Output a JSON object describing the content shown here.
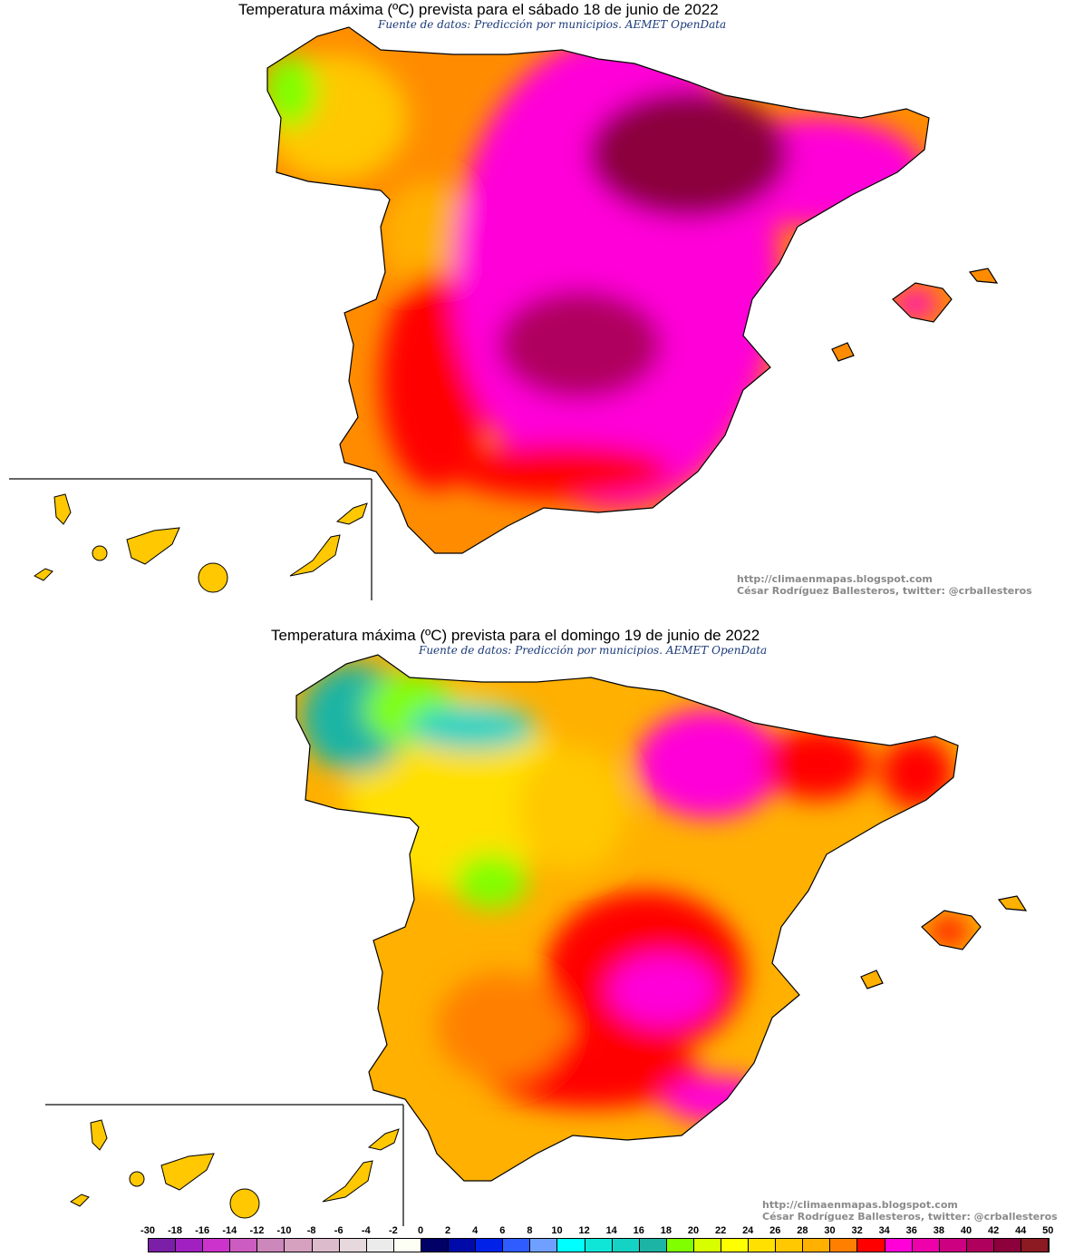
{
  "maps": [
    {
      "title": "Temperatura máxima (ºC) prevista para el sábado 18 de junio de 2022",
      "subtitle": "Fuente de datos: Predicción por municipios. AEMET OpenData",
      "credit_url": "http://climaenmapas.blogspot.com",
      "credit_author": "César Rodríguez Ballesteros, twitter: @crballesteros"
    },
    {
      "title": "Temperatura máxima (ºC) prevista para el domingo 19 de junio de 2022",
      "subtitle": "Fuente de datos: Predicción por municipios. AEMET OpenData",
      "credit_url": "http://climaenmapas.blogspot.com",
      "credit_author": "César Rodríguez Ballesteros, twitter: @crballesteros"
    }
  ],
  "legend": {
    "labels": [
      "-30",
      "-18",
      "-16",
      "-14",
      "-12",
      "-10",
      "-8",
      "-6",
      "-4",
      "-2",
      "0",
      "2",
      "4",
      "6",
      "8",
      "10",
      "12",
      "14",
      "16",
      "18",
      "20",
      "22",
      "24",
      "26",
      "28",
      "30",
      "32",
      "34",
      "36",
      "38",
      "40",
      "42",
      "44",
      "50"
    ],
    "colors": [
      "#7b1fa8",
      "#a020c0",
      "#cc33cc",
      "#cc5cbf",
      "#cc88bb",
      "#d6a0bf",
      "#dcbccc",
      "#e6d8dc",
      "#ebebeb",
      "#fdfff5",
      "#000066",
      "#000aa8",
      "#0022e8",
      "#2e5cff",
      "#70a0ff",
      "#00ffff",
      "#10e6d8",
      "#14d2c4",
      "#1cb4a4",
      "#80ff00",
      "#d8ff00",
      "#ffff00",
      "#ffe000",
      "#ffc800",
      "#ffb000",
      "#ff8000",
      "#ff0000",
      "#ff00d8",
      "#ee00aa",
      "#cc0080",
      "#b0005e",
      "#8c003c",
      "#8c1a22"
    ]
  }
}
